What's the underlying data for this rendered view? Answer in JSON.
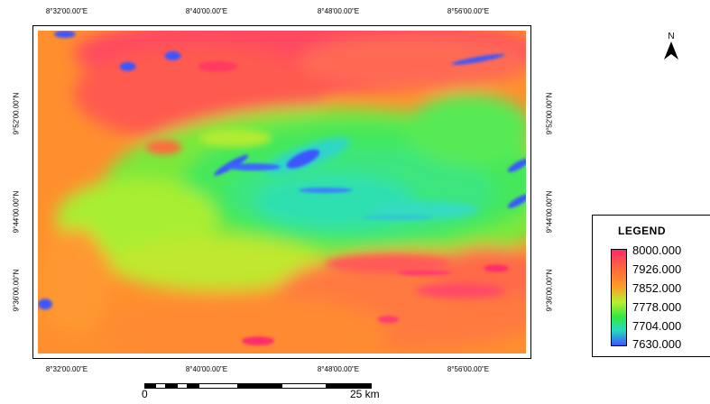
{
  "map": {
    "top_ticks": [
      "8°32'00.00\"E",
      "8°40'00.00\"E",
      "8°48'00.00\"E",
      "8°56'00.00\"E"
    ],
    "bottom_ticks": [
      "8°32'00.00\"E",
      "8°40'00.00\"E",
      "8°48'00.00\"E",
      "8°56'00.00\"E"
    ],
    "left_ticks": [
      "9°52'00.00\"N",
      "9°44'00.00\"N",
      "9°36'00.00\"N"
    ],
    "right_ticks": [
      "9°52'00.00\"N",
      "9°44'00.00\"N",
      "9°36'00.00\"N"
    ]
  },
  "north_arrow": {
    "label": "N"
  },
  "scale_bar": {
    "start_label": "0",
    "end_label": "25 km"
  },
  "legend": {
    "title": "LEGEND",
    "values": [
      "8000.000",
      "7926.000",
      "7852.000",
      "7778.000",
      "7704.000",
      "7630.000"
    ],
    "colors": [
      "#ff2a6a",
      "#ff6a3a",
      "#ff9a2a",
      "#b8ef30",
      "#33e840",
      "#25dcc0",
      "#3a56ff"
    ]
  }
}
